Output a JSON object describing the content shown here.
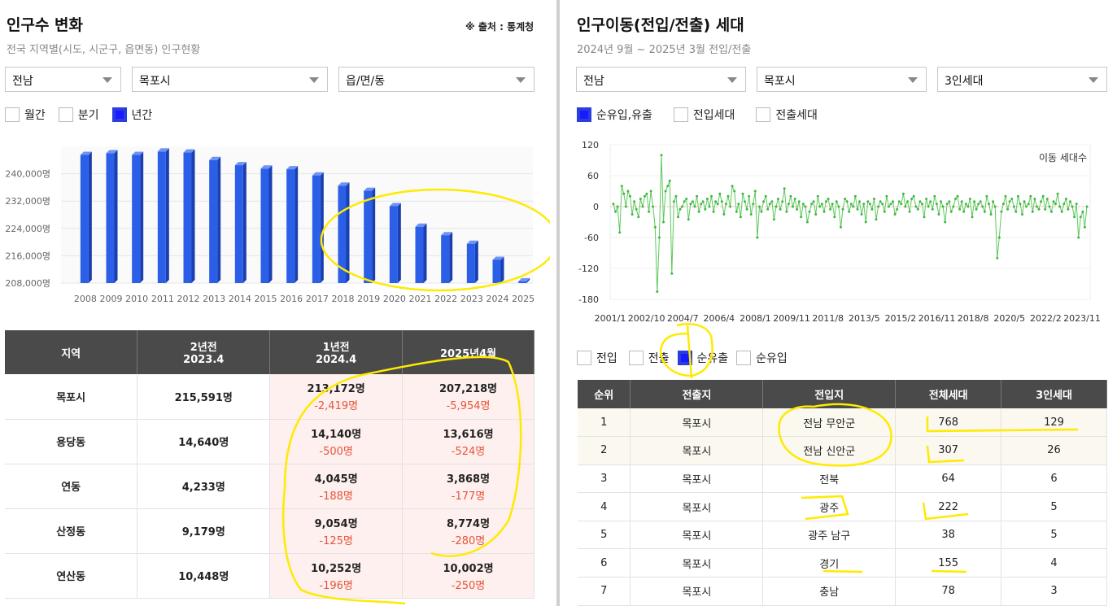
{
  "left": {
    "title": "인구수 변화",
    "source": "※ 출처 : 통계청",
    "subtitle": "전국 지역별(시도, 시군구, 읍면동) 인구현황",
    "filters": [
      "전남",
      "목포시",
      "읍/면/동"
    ],
    "period_options": [
      {
        "label": "월간",
        "checked": false
      },
      {
        "label": "분기",
        "checked": false
      },
      {
        "label": "년간",
        "checked": true
      }
    ],
    "table": {
      "headers": [
        {
          "line1": "지역",
          "line2": ""
        },
        {
          "line1": "2년전",
          "line2": "2023.4"
        },
        {
          "line1": "1년전",
          "line2": "2024.4"
        },
        {
          "line1": "2025년4월",
          "line2": ""
        }
      ],
      "rows": [
        {
          "region": "목포시",
          "y2023": "215,591명",
          "y2024": "213,172명",
          "d2024": "-2,419명",
          "y2025": "207,218명",
          "d2025": "-5,954명"
        },
        {
          "region": "용당동",
          "y2023": "14,640명",
          "y2024": "14,140명",
          "d2024": "-500명",
          "y2025": "13,616명",
          "d2025": "-524명"
        },
        {
          "region": "연동",
          "y2023": "4,233명",
          "y2024": "4,045명",
          "d2024": "-188명",
          "y2025": "3,868명",
          "d2025": "-177명"
        },
        {
          "region": "산정동",
          "y2023": "9,179명",
          "y2024": "9,054명",
          "d2024": "-125명",
          "y2025": "8,774명",
          "d2025": "-280명"
        },
        {
          "region": "연산동",
          "y2023": "10,448명",
          "y2024": "10,252명",
          "d2024": "-196명",
          "y2025": "10,002명",
          "d2025": "-250명"
        }
      ]
    }
  },
  "right": {
    "title": "인구이동(전입/전출) 세대",
    "subtitle": "2024년 9월 ~ 2025년 3월 전입/전출",
    "filters": [
      "전남",
      "목포시",
      "3인세대"
    ],
    "type_options": [
      {
        "label": "순유입,유출",
        "checked": true
      },
      {
        "label": "전입세대",
        "checked": false
      },
      {
        "label": "전출세대",
        "checked": false
      }
    ],
    "flow_options": [
      {
        "label": "전입",
        "checked": false
      },
      {
        "label": "전출",
        "checked": false
      },
      {
        "label": "순유출",
        "checked": true
      },
      {
        "label": "순유입",
        "checked": false
      }
    ],
    "table": {
      "headers": [
        "순위",
        "전출지",
        "전입지",
        "전체세대",
        "3인세대"
      ],
      "rows": [
        [
          "1",
          "목포시",
          "전남 무안군",
          "768",
          "129"
        ],
        [
          "2",
          "목포시",
          "전남 신안군",
          "307",
          "26"
        ],
        [
          "3",
          "목포시",
          "전북",
          "64",
          "6"
        ],
        [
          "4",
          "목포시",
          "광주",
          "222",
          "5"
        ],
        [
          "5",
          "목포시",
          "광주 남구",
          "38",
          "5"
        ],
        [
          "6",
          "목포시",
          "경기",
          "155",
          "4"
        ],
        [
          "7",
          "목포시",
          "충남",
          "78",
          "3"
        ]
      ]
    }
  },
  "chart_data": [
    {
      "type": "bar",
      "categories": [
        "2008",
        "2009",
        "2010",
        "2011",
        "2012",
        "2013",
        "2014",
        "2015",
        "2016",
        "2017",
        "2018",
        "2019",
        "2020",
        "2021",
        "2022",
        "2023",
        "2024",
        "2025"
      ],
      "values": [
        245500,
        246000,
        245500,
        246500,
        246200,
        244000,
        242500,
        241500,
        241300,
        239500,
        236500,
        235000,
        230500,
        224500,
        222000,
        219500,
        214800,
        208500
      ],
      "ylim": [
        208000,
        248000
      ],
      "yticks": [
        "208,000명",
        "216,000명",
        "224,000명",
        "232,000명",
        "240,000명"
      ],
      "ytick_values": [
        208000,
        216000,
        224000,
        232000,
        240000
      ],
      "bar_color": "#2b5fe8",
      "grid": true
    },
    {
      "type": "line",
      "legend": "이동 세대수",
      "xticks": [
        "2001/1",
        "2002/10",
        "2004/7",
        "2006/4",
        "2008/1",
        "2009/11",
        "2011/8",
        "2013/5",
        "2015/2",
        "2016/11",
        "2018/8",
        "2020/5",
        "2022/2",
        "2023/11"
      ],
      "yticks": [
        "120",
        "60",
        "0",
        "-60",
        "-120",
        "-180"
      ],
      "ytick_values": [
        120,
        60,
        0,
        -60,
        -120,
        -180
      ],
      "ylim": [
        -180,
        120
      ],
      "line_color": "#5cc95c",
      "values": [
        5,
        -10,
        0,
        -50,
        40,
        25,
        0,
        30,
        20,
        -15,
        10,
        -5,
        -20,
        15,
        0,
        20,
        25,
        -10,
        30,
        0,
        -40,
        -165,
        -60,
        100,
        -30,
        30,
        40,
        50,
        -130,
        10,
        20,
        -20,
        -5,
        0,
        10,
        15,
        -25,
        5,
        10,
        0,
        20,
        -10,
        5,
        10,
        -5,
        15,
        0,
        20,
        -10,
        10,
        5,
        25,
        10,
        -15,
        5,
        20,
        0,
        40,
        30,
        -10,
        5,
        -20,
        25,
        10,
        -5,
        20,
        -15,
        5,
        30,
        -60,
        0,
        -10,
        10,
        20,
        -5,
        5,
        10,
        -25,
        0,
        15,
        -5,
        10,
        35,
        -10,
        5,
        20,
        0,
        15,
        -5,
        10,
        -20,
        5,
        0,
        -30,
        -10,
        5,
        10,
        -15,
        20,
        0,
        5,
        -10,
        10,
        15,
        -5,
        5,
        -20,
        10,
        0,
        -40,
        -5,
        15,
        10,
        -10,
        5,
        0,
        20,
        -5,
        10,
        -15,
        5,
        -30,
        10,
        5,
        -5,
        15,
        -25,
        0,
        10,
        5,
        -10,
        20,
        0,
        5,
        10,
        -15,
        -5,
        10,
        5,
        25,
        0,
        10,
        -10,
        15,
        20,
        0,
        -5,
        10,
        5,
        -20,
        15,
        0,
        10,
        -5,
        20,
        5,
        -15,
        10,
        0,
        -30,
        5,
        10,
        -10,
        0,
        15,
        20,
        -5,
        10,
        -10,
        5,
        0,
        15,
        -20,
        10,
        -5,
        5,
        10,
        0,
        -10,
        20,
        5,
        -15,
        10,
        0,
        -100,
        -60,
        -10,
        5,
        20,
        -5,
        10,
        15,
        0,
        -10,
        20,
        5,
        -15,
        10,
        0,
        5,
        20,
        -10,
        15,
        0,
        -5,
        10,
        20,
        -5,
        15,
        0,
        -10,
        10,
        5,
        25,
        0,
        -10,
        5,
        15,
        -5,
        10,
        0,
        -20,
        5,
        -60,
        -20,
        -10,
        -40,
        0
      ]
    }
  ]
}
